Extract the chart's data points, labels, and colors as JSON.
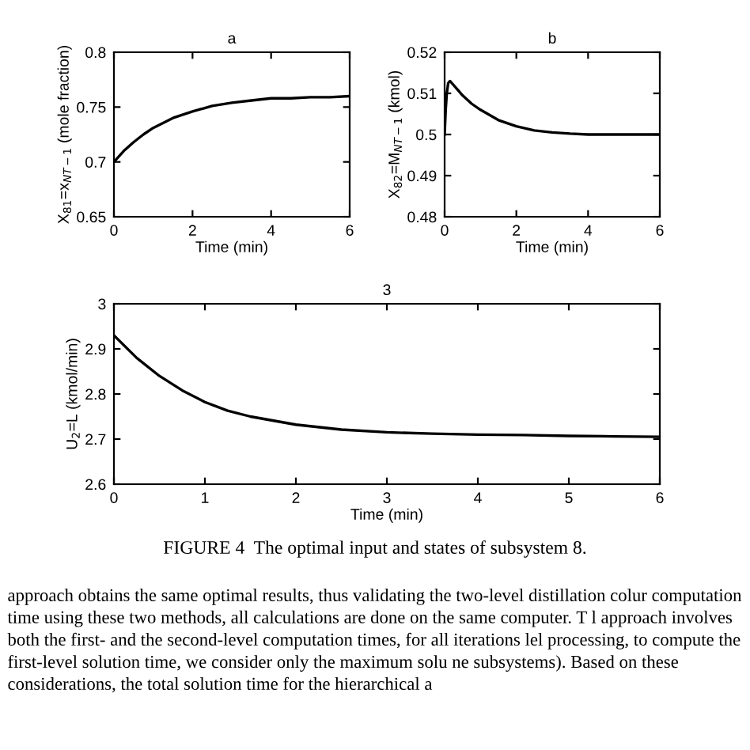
{
  "chart_data": [
    {
      "type": "line",
      "title": "a",
      "xlabel": "Time (min)",
      "ylabel": "X$_{81}$=x$_{NT−1}$ (mole fraction)",
      "xlim": [
        0,
        6
      ],
      "xticks": [
        0,
        2,
        4,
        6
      ],
      "ylim": [
        0.65,
        0.8
      ],
      "yticks": [
        0.65,
        0.7,
        0.75,
        0.8
      ],
      "grid": false,
      "legend": false,
      "series": [
        {
          "color": "#000000",
          "x": [
            0,
            0.25,
            0.5,
            0.75,
            1,
            1.5,
            2,
            2.5,
            3,
            3.5,
            4,
            4.5,
            5,
            5.5,
            6
          ],
          "values": [
            0.7,
            0.71,
            0.718,
            0.725,
            0.731,
            0.74,
            0.746,
            0.751,
            0.754,
            0.756,
            0.758,
            0.758,
            0.759,
            0.759,
            0.76
          ]
        }
      ]
    },
    {
      "type": "line",
      "title": "b",
      "xlabel": "Time (min)",
      "ylabel": "X$_{82}$=M$_{NT−1}$ (kmol)",
      "xlim": [
        0,
        6
      ],
      "xticks": [
        0,
        2,
        4,
        6
      ],
      "ylim": [
        0.48,
        0.52
      ],
      "yticks": [
        0.48,
        0.49,
        0.5,
        0.51,
        0.52
      ],
      "grid": false,
      "legend": false,
      "series": [
        {
          "color": "#000000",
          "x": [
            0,
            0.03,
            0.06,
            0.1,
            0.15,
            0.2,
            0.3,
            0.5,
            0.75,
            1,
            1.5,
            2,
            2.5,
            3,
            3.5,
            4,
            5,
            6
          ],
          "values": [
            0.5,
            0.506,
            0.51,
            0.5125,
            0.513,
            0.5125,
            0.5115,
            0.5095,
            0.5075,
            0.506,
            0.5035,
            0.502,
            0.501,
            0.5005,
            0.5002,
            0.5,
            0.5,
            0.5
          ]
        }
      ]
    },
    {
      "type": "line",
      "title": "3",
      "xlabel": "Time (min)",
      "ylabel": "U$_{2}$=L (kmol/min)",
      "xlim": [
        0,
        6
      ],
      "xticks": [
        0,
        1,
        2,
        3,
        4,
        5,
        6
      ],
      "ylim": [
        2.6,
        3
      ],
      "yticks": [
        2.6,
        2.7,
        2.8,
        2.9,
        3
      ],
      "grid": false,
      "legend": false,
      "annotations": [
        "FIGURE 4  The optimal input and states of subsystem 8.",
        "approach obtains the same optimal results, thus validating the two-level distillation colur computation time using these two methods, all calculations are done on the same computer. T l approach involves both the first- and the second-level computation times, for all iterations lel processing, to compute the first-level solution time, we consider only the maximum solu ne subsystems). Based on these considerations, the total solution time for the hierarchical a"
      ],
      "series": [
        {
          "color": "#000000",
          "x": [
            0,
            0.25,
            0.5,
            0.75,
            1,
            1.25,
            1.5,
            2,
            2.5,
            3,
            3.5,
            4,
            4.5,
            5,
            5.5,
            6
          ],
          "values": [
            2.93,
            2.88,
            2.84,
            2.808,
            2.782,
            2.763,
            2.75,
            2.732,
            2.721,
            2.715,
            2.712,
            2.71,
            2.709,
            2.707,
            2.706,
            2.705
          ]
        }
      ]
    }
  ]
}
